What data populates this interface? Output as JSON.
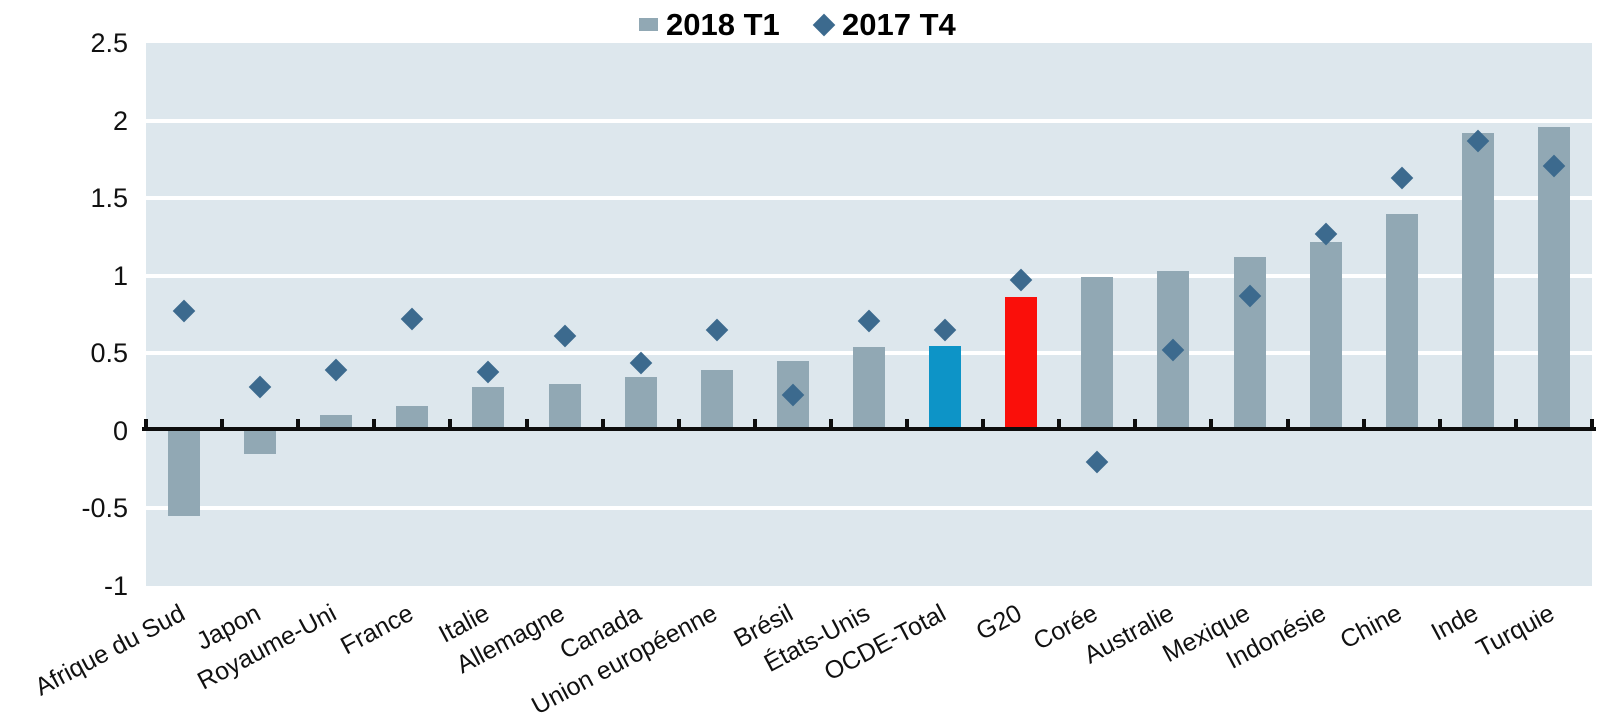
{
  "legend": {
    "series1": "2018 T1",
    "series2": "2017 T4"
  },
  "colors": {
    "plot_background": "#dde7ed",
    "bar_default": "#91a8b4",
    "bar_ocde_total": "#0d94c7",
    "bar_g20": "#fa0f0a",
    "diamond": "#3c6a8e",
    "gridline": "#ffffff",
    "axis": "#0d0d0d",
    "text": "#111111"
  },
  "chart_data": {
    "type": "bar",
    "title": "",
    "xlabel": "",
    "ylabel": "",
    "categories": [
      "Afrique du Sud",
      "Japon",
      "Royaume-Uni",
      "France",
      "Italie",
      "Allemagne",
      "Canada",
      "Union européenne",
      "Brésil",
      "États-Unis",
      "OCDE-Total",
      "G20",
      "Corée",
      "Australie",
      "Mexique",
      "Indonésie",
      "Chine",
      "Inde",
      "Turquie"
    ],
    "series": [
      {
        "name": "2018 T1",
        "type": "bar",
        "values": [
          -0.55,
          -0.15,
          0.1,
          0.16,
          0.28,
          0.3,
          0.35,
          0.39,
          0.45,
          0.54,
          0.55,
          0.86,
          0.99,
          1.03,
          1.12,
          1.22,
          1.4,
          1.92,
          1.96
        ]
      },
      {
        "name": "2017 T4",
        "type": "scatter-diamond",
        "values": [
          0.77,
          0.28,
          0.39,
          0.72,
          0.38,
          0.61,
          0.44,
          0.65,
          0.23,
          0.71,
          0.65,
          0.97,
          -0.2,
          0.52,
          0.87,
          1.27,
          1.63,
          1.87,
          1.71
        ]
      }
    ],
    "highlight_bars": {
      "OCDE-Total": "#0d94c7",
      "G20": "#fa0f0a"
    },
    "ylim": [
      -1,
      2.5
    ],
    "yticks": [
      2.5,
      2,
      1.5,
      1,
      0.5,
      0,
      -0.5,
      -1
    ],
    "grid": "horizontal white lines every 0.5, plot background light blue-gray",
    "legend_position": "top-center",
    "x_label_rotation_deg": -28
  }
}
